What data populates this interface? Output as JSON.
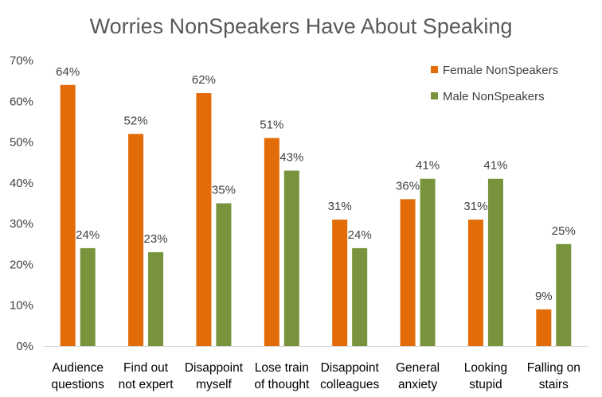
{
  "chart_data": {
    "type": "bar",
    "title": "Worries NonSpeakers Have About Speaking",
    "categories": [
      [
        "Audience",
        "questions"
      ],
      [
        "Find out",
        "not expert"
      ],
      [
        "Disappoint",
        "myself"
      ],
      [
        "Lose train",
        "of thought"
      ],
      [
        "Disappoint",
        "colleagues"
      ],
      [
        "General",
        "anxiety"
      ],
      [
        "Looking",
        "stupid"
      ],
      [
        "Falling on",
        "stairs"
      ]
    ],
    "series": [
      {
        "name": "Female NonSpeakers",
        "color": "#E36C09",
        "values": [
          64,
          52,
          62,
          51,
          31,
          36,
          31,
          9
        ]
      },
      {
        "name": "Male NonSpeakers",
        "color": "#77933C",
        "values": [
          24,
          23,
          35,
          43,
          24,
          41,
          41,
          25
        ]
      }
    ],
    "value_suffix": "%",
    "ylim": [
      0,
      70
    ],
    "yticks": [
      0,
      10,
      20,
      30,
      40,
      50,
      60,
      70
    ],
    "ytick_labels": [
      "0%",
      "10%",
      "20%",
      "30%",
      "40%",
      "50%",
      "60%",
      "70%"
    ],
    "grid": false,
    "legend": "top-right",
    "xlabel": "",
    "ylabel": ""
  }
}
